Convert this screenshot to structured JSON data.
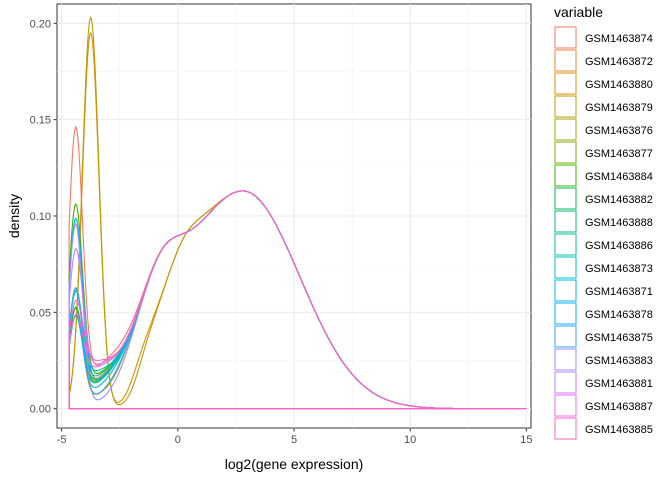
{
  "chart_data": {
    "type": "line",
    "xlabel": "log2(gene expression)",
    "ylabel": "density",
    "xlim": [
      -5.2,
      15.2
    ],
    "ylim": [
      -0.01,
      0.21
    ],
    "x_ticks": [
      -5,
      0,
      5,
      10,
      15
    ],
    "x_tick_labels": [
      "-5",
      "0",
      "5",
      "10",
      "15"
    ],
    "y_ticks": [
      0.0,
      0.05,
      0.1,
      0.15,
      0.2
    ],
    "y_tick_labels": [
      "0.00",
      "0.05",
      "0.10",
      "0.15",
      "0.20"
    ],
    "grid": true,
    "legend": {
      "title": "variable",
      "position": "right"
    },
    "series": [
      {
        "name": "GSM1463874",
        "color": "#F8766D",
        "peak": 0.137,
        "dip": 0.032,
        "dip_x": -3.0,
        "kind": "mid"
      },
      {
        "name": "GSM1463872",
        "color": "#EA8331",
        "peak": 0.04,
        "dip": 0.018,
        "dip_x": -3.4,
        "kind": "low"
      },
      {
        "name": "GSM1463880",
        "color": "#D89000",
        "peak": 0.195,
        "dip": 0.0,
        "dip_x": -2.0,
        "kind": "tall"
      },
      {
        "name": "GSM1463879",
        "color": "#C09B00",
        "peak": 0.203,
        "dip": 0.0,
        "dip_x": -1.8,
        "kind": "tall"
      },
      {
        "name": "GSM1463876",
        "color": "#A3A500",
        "peak": 0.05,
        "dip": 0.01,
        "dip_x": -2.8,
        "kind": "low"
      },
      {
        "name": "GSM1463877",
        "color": "#7CAE00",
        "peak": 0.056,
        "dip": 0.018,
        "dip_x": -3.2,
        "kind": "low"
      },
      {
        "name": "GSM1463884",
        "color": "#39B600",
        "peak": 0.097,
        "dip": 0.022,
        "dip_x": -3.3,
        "kind": "mid"
      },
      {
        "name": "GSM1463882",
        "color": "#00BB4E",
        "peak": 0.046,
        "dip": 0.016,
        "dip_x": -3.3,
        "kind": "low"
      },
      {
        "name": "GSM1463888",
        "color": "#00BF7D",
        "peak": 0.052,
        "dip": 0.02,
        "dip_x": -3.4,
        "kind": "low"
      },
      {
        "name": "GSM1463886",
        "color": "#00C1A3",
        "peak": 0.042,
        "dip": 0.015,
        "dip_x": -3.3,
        "kind": "low"
      },
      {
        "name": "GSM1463873",
        "color": "#00BFC4",
        "peak": 0.048,
        "dip": 0.024,
        "dip_x": -3.6,
        "kind": "low"
      },
      {
        "name": "GSM1463871",
        "color": "#00BAE0",
        "peak": 0.044,
        "dip": 0.012,
        "dip_x": -3.2,
        "kind": "low"
      },
      {
        "name": "GSM1463878",
        "color": "#00B0F6",
        "peak": 0.092,
        "dip": 0.018,
        "dip_x": -3.2,
        "kind": "mid"
      },
      {
        "name": "GSM1463875",
        "color": "#35A2FF",
        "peak": 0.06,
        "dip": 0.008,
        "dip_x": -3.0,
        "kind": "low"
      },
      {
        "name": "GSM1463883",
        "color": "#9590FF",
        "peak": 0.095,
        "dip": 0.004,
        "dip_x": -2.8,
        "kind": "mid"
      },
      {
        "name": "GSM1463881",
        "color": "#C77CFF",
        "peak": 0.068,
        "dip": 0.03,
        "dip_x": -3.5,
        "kind": "low"
      },
      {
        "name": "GSM1463887",
        "color": "#E76BF3",
        "peak": 0.035,
        "dip": 0.028,
        "dip_x": -3.5,
        "kind": "low"
      },
      {
        "name": "GSM1463885",
        "color": "#FF62BC",
        "peak": 0.038,
        "dip": 0.034,
        "dip_x": -3.6,
        "kind": "low"
      }
    ]
  }
}
